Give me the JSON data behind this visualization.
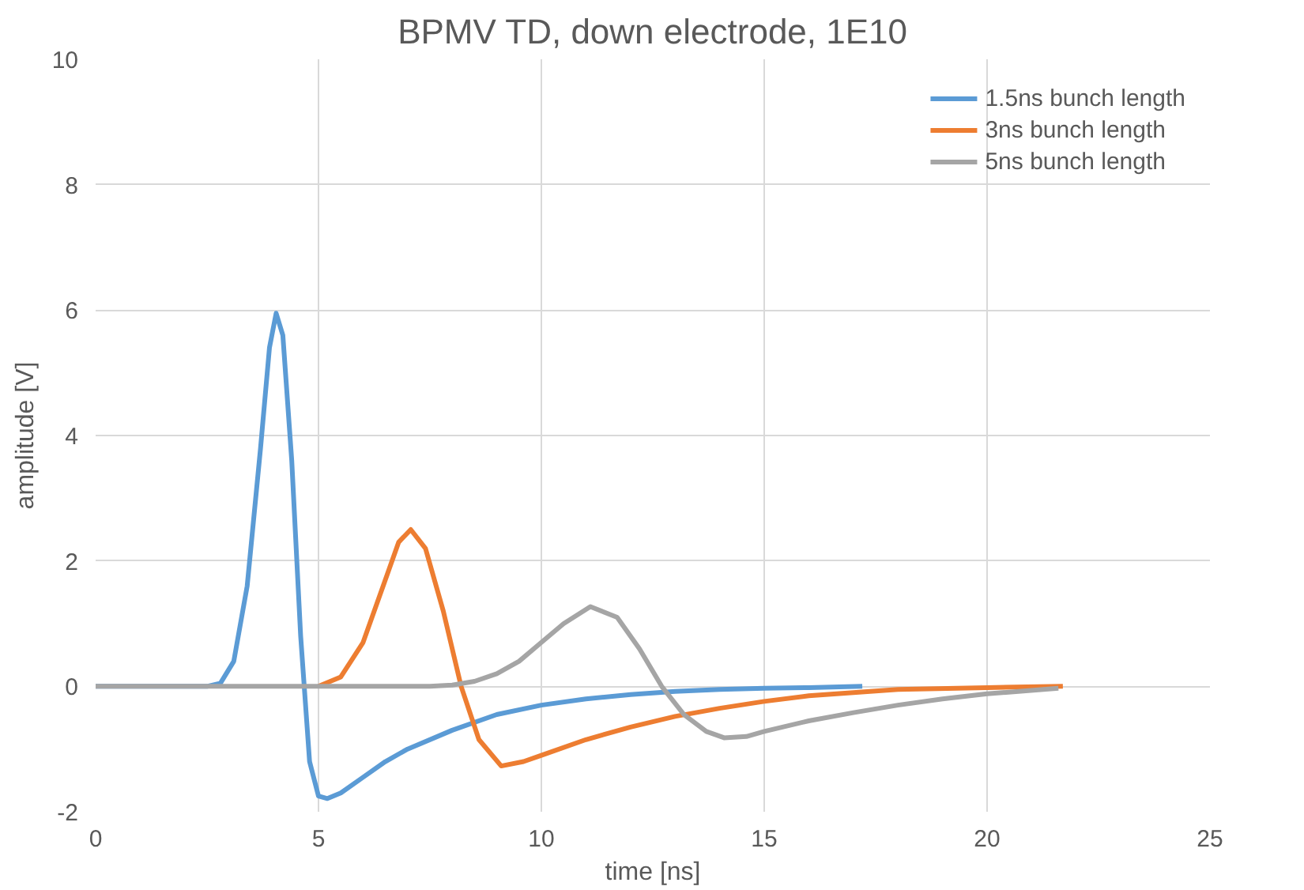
{
  "chart_data": {
    "type": "line",
    "title": "BPMV TD, down electrode, 1E10",
    "xlabel": "time [ns]",
    "ylabel": "amplitude [V]",
    "xlim": [
      0,
      25
    ],
    "ylim": [
      -2,
      10
    ],
    "xticks": [
      0,
      5,
      10,
      15,
      20,
      25
    ],
    "yticks": [
      -2,
      0,
      2,
      4,
      6,
      8,
      10
    ],
    "grid": true,
    "legend": "top right",
    "marker": "none",
    "line_style": "solid",
    "series": [
      {
        "name": "1.5ns bunch length",
        "color": "#5b9bd5",
        "x": [
          0,
          2.5,
          2.8,
          3.1,
          3.4,
          3.7,
          3.9,
          4.05,
          4.2,
          4.4,
          4.6,
          4.8,
          5.0,
          5.2,
          5.5,
          6,
          6.5,
          7,
          8,
          9,
          10,
          11,
          12,
          13,
          14,
          15,
          16,
          17.2
        ],
        "values": [
          0,
          0,
          0.05,
          0.4,
          1.6,
          3.8,
          5.4,
          5.95,
          5.6,
          3.6,
          0.8,
          -1.2,
          -1.75,
          -1.79,
          -1.7,
          -1.45,
          -1.2,
          -1.0,
          -0.7,
          -0.45,
          -0.3,
          -0.2,
          -0.13,
          -0.08,
          -0.05,
          -0.03,
          -0.02,
          0
        ]
      },
      {
        "name": "3ns bunch length",
        "color": "#ed7d31",
        "x": [
          5,
          5.5,
          6,
          6.5,
          6.8,
          7.07,
          7.4,
          7.8,
          8.2,
          8.6,
          9.1,
          9.6,
          10,
          11,
          12,
          13,
          14,
          15,
          16,
          18,
          20,
          21.7
        ],
        "values": [
          0,
          0.15,
          0.7,
          1.7,
          2.3,
          2.5,
          2.2,
          1.2,
          0,
          -0.85,
          -1.27,
          -1.2,
          -1.1,
          -0.85,
          -0.65,
          -0.48,
          -0.35,
          -0.24,
          -0.15,
          -0.05,
          -0.02,
          0
        ]
      },
      {
        "name": "5ns bunch length",
        "color": "#a5a5a5",
        "x": [
          0,
          7.5,
          8,
          8.5,
          9,
          9.5,
          10,
          10.5,
          11.1,
          11.7,
          12.2,
          12.7,
          13.2,
          13.7,
          14.1,
          14.6,
          15,
          16,
          17,
          18,
          19,
          20,
          21.6
        ],
        "values": [
          0,
          0,
          0.02,
          0.08,
          0.2,
          0.4,
          0.7,
          1.0,
          1.27,
          1.1,
          0.6,
          0,
          -0.45,
          -0.72,
          -0.82,
          -0.8,
          -0.72,
          -0.55,
          -0.42,
          -0.3,
          -0.2,
          -0.12,
          -0.03
        ]
      }
    ]
  }
}
